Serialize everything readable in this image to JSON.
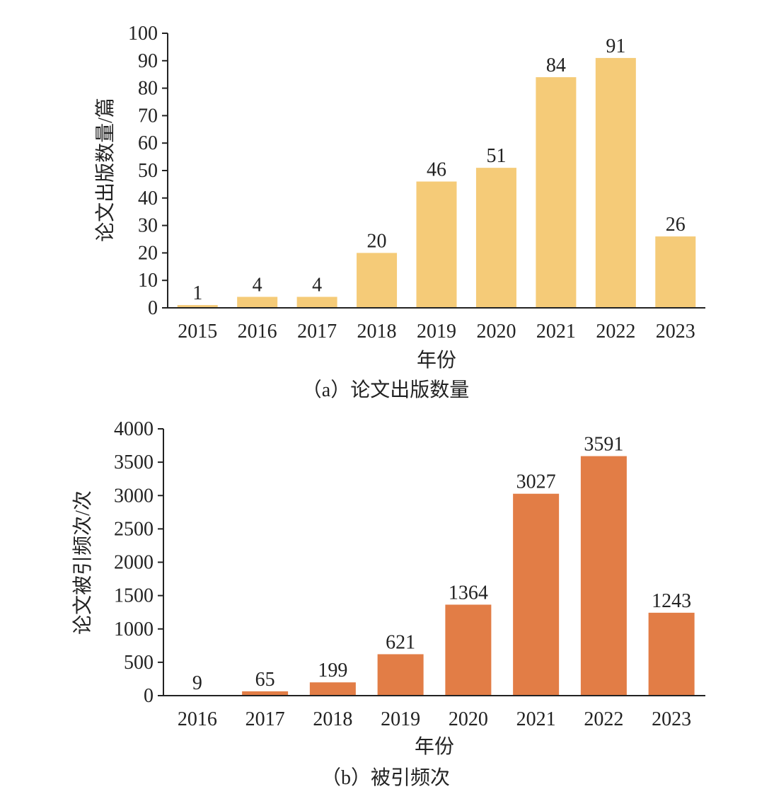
{
  "colors": {
    "bar_a": "#F5CB78",
    "bar_b": "#E27D46",
    "axis": "#222222"
  },
  "chart_data": [
    {
      "type": "bar",
      "categories": [
        "2015",
        "2016",
        "2017",
        "2018",
        "2019",
        "2020",
        "2021",
        "2022",
        "2023"
      ],
      "values": [
        1,
        4,
        4,
        20,
        46,
        51,
        84,
        91,
        26
      ],
      "ylabel": "论文出版数量/篇",
      "xlabel": "年份",
      "caption": "（a）论文出版数量",
      "ylim": [
        0,
        100
      ],
      "yticks": [
        0,
        10,
        20,
        30,
        40,
        50,
        60,
        70,
        80,
        90,
        100
      ],
      "data_labels": true,
      "grid": false
    },
    {
      "type": "bar",
      "categories": [
        "2016",
        "2017",
        "2018",
        "2019",
        "2020",
        "2021",
        "2022",
        "2023"
      ],
      "values": [
        9,
        65,
        199,
        621,
        1364,
        3027,
        3591,
        1243
      ],
      "ylabel": "论文被引频次/次",
      "xlabel": "年份",
      "caption": "（b）被引频次",
      "ylim": [
        0,
        4000
      ],
      "yticks": [
        0,
        500,
        1000,
        1500,
        2000,
        2500,
        3000,
        3500,
        4000
      ],
      "data_labels": true,
      "grid": false
    }
  ]
}
